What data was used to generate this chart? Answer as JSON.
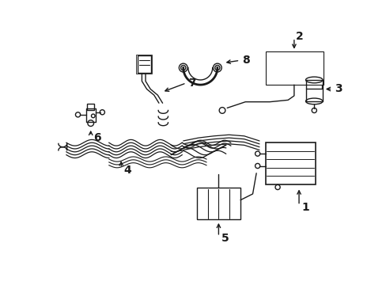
{
  "background_color": "#ffffff",
  "line_color": "#1a1a1a",
  "line_width": 1.0,
  "figure_width": 4.89,
  "figure_height": 3.6,
  "dpi": 100,
  "font_size": 10
}
